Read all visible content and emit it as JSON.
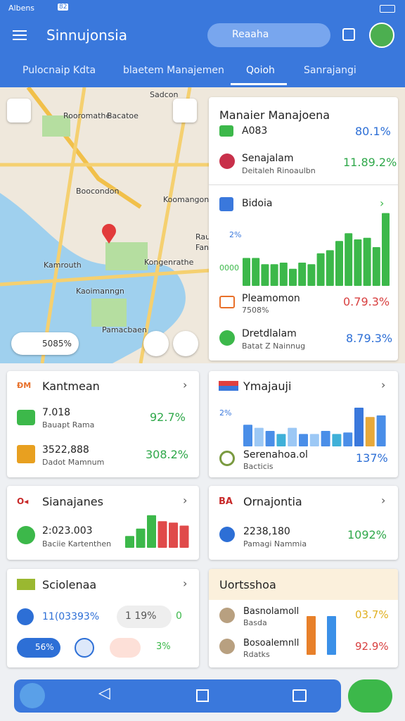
{
  "status_bar": {
    "carrier": "Albens",
    "badge": "82"
  },
  "app_bar": {
    "title": "Sinnujonsia",
    "search": "Reaaha"
  },
  "tabs": {
    "items": [
      "Pulocnaip Kdta",
      "blaetem Manajemen",
      "Qoioh",
      "Sanrajangi"
    ],
    "active": 2
  },
  "map": {
    "labels": [
      "Sadcon",
      "Rooromathe",
      "Bacatoe",
      "Boocondon",
      "Koomangonn",
      "Kamrouth",
      "Kongenrathe",
      "Kaoimanngn",
      "Pamacbaen",
      "Rau",
      "Fano"
    ],
    "scale": "5085%"
  },
  "panel": {
    "title": "Manaier Manajoena",
    "row1": {
      "label": "A083",
      "value": "80.1%"
    },
    "row2": {
      "label": "Senajalam",
      "sub": "Deitaleh Rinoaulbn",
      "value": "11.89.2%"
    },
    "chart": {
      "title": "Bidoia",
      "top_label": "2%",
      "bottom_label": "0000",
      "color": "#3cb84a",
      "values": [
        36,
        36,
        28,
        28,
        30,
        22,
        30,
        28,
        42,
        46,
        58,
        68,
        60,
        62,
        50,
        94
      ]
    },
    "row3": {
      "label": "Pleamomon",
      "sub": "7508%",
      "value": "0.79.3%"
    },
    "row4": {
      "label": "Dretdlalam",
      "sub": "Batat Z Nainnug",
      "value": "8.79.3%"
    }
  },
  "cards": [
    {
      "title": "Kantmean",
      "rows": [
        {
          "label": "7.018",
          "sub": "Bauapt Rama",
          "value": "92.7%"
        },
        {
          "label": "3522,888",
          "sub": "Dadot Mamnum",
          "value": "308.2%"
        }
      ]
    },
    {
      "title": "Ymajauji",
      "chart": {
        "label": "2%",
        "values": [
          28,
          24,
          20,
          16,
          24,
          16,
          16,
          20,
          16,
          18,
          50,
          38,
          40
        ],
        "colors": [
          "#4a8ee8",
          "#9cc8f5",
          "#4a8ee8",
          "#3fb0d8",
          "#9cc8f5",
          "#4a8ee8",
          "#9cc8f5",
          "#4a8ee8",
          "#3fb0d8",
          "#4a8ee8",
          "#3a78dc",
          "#e8a93a",
          "#4a8ee8"
        ]
      },
      "row": {
        "label": "Serenahoa.ol",
        "sub": "Bacticis",
        "value": "137%"
      }
    },
    {
      "title": "Sianajanes",
      "row": {
        "label": "2:023.003",
        "sub": "Baciie Kartenthen"
      },
      "chart": {
        "values": [
          16,
          26,
          44,
          36,
          34,
          30
        ],
        "colors": [
          "#3cb84a",
          "#3cb84a",
          "#3cb84a",
          "#e04a4a",
          "#e04a4a",
          "#e04a4a"
        ]
      }
    },
    {
      "title": "Ornajontia",
      "row": {
        "label": "2238,180",
        "sub": "Pamagi Nammia",
        "value": "1092%"
      }
    },
    {
      "title": "Sciolenaa",
      "row": {
        "label": "11(03393%",
        "chip": "1 19%",
        "end": "0"
      },
      "chips": [
        "56%",
        "3%"
      ]
    },
    {
      "title": "Uortsshoa",
      "rows": [
        {
          "label": "Basnolamoll",
          "sub": "Basda",
          "value": "03.7%"
        },
        {
          "label": "Bosoalemnll",
          "sub": "Rdatks",
          "value": "92.9%"
        }
      ],
      "chart": {
        "values": [
          50,
          50
        ],
        "colors": [
          "#e8802a",
          "#3a90e8"
        ]
      }
    }
  ]
}
